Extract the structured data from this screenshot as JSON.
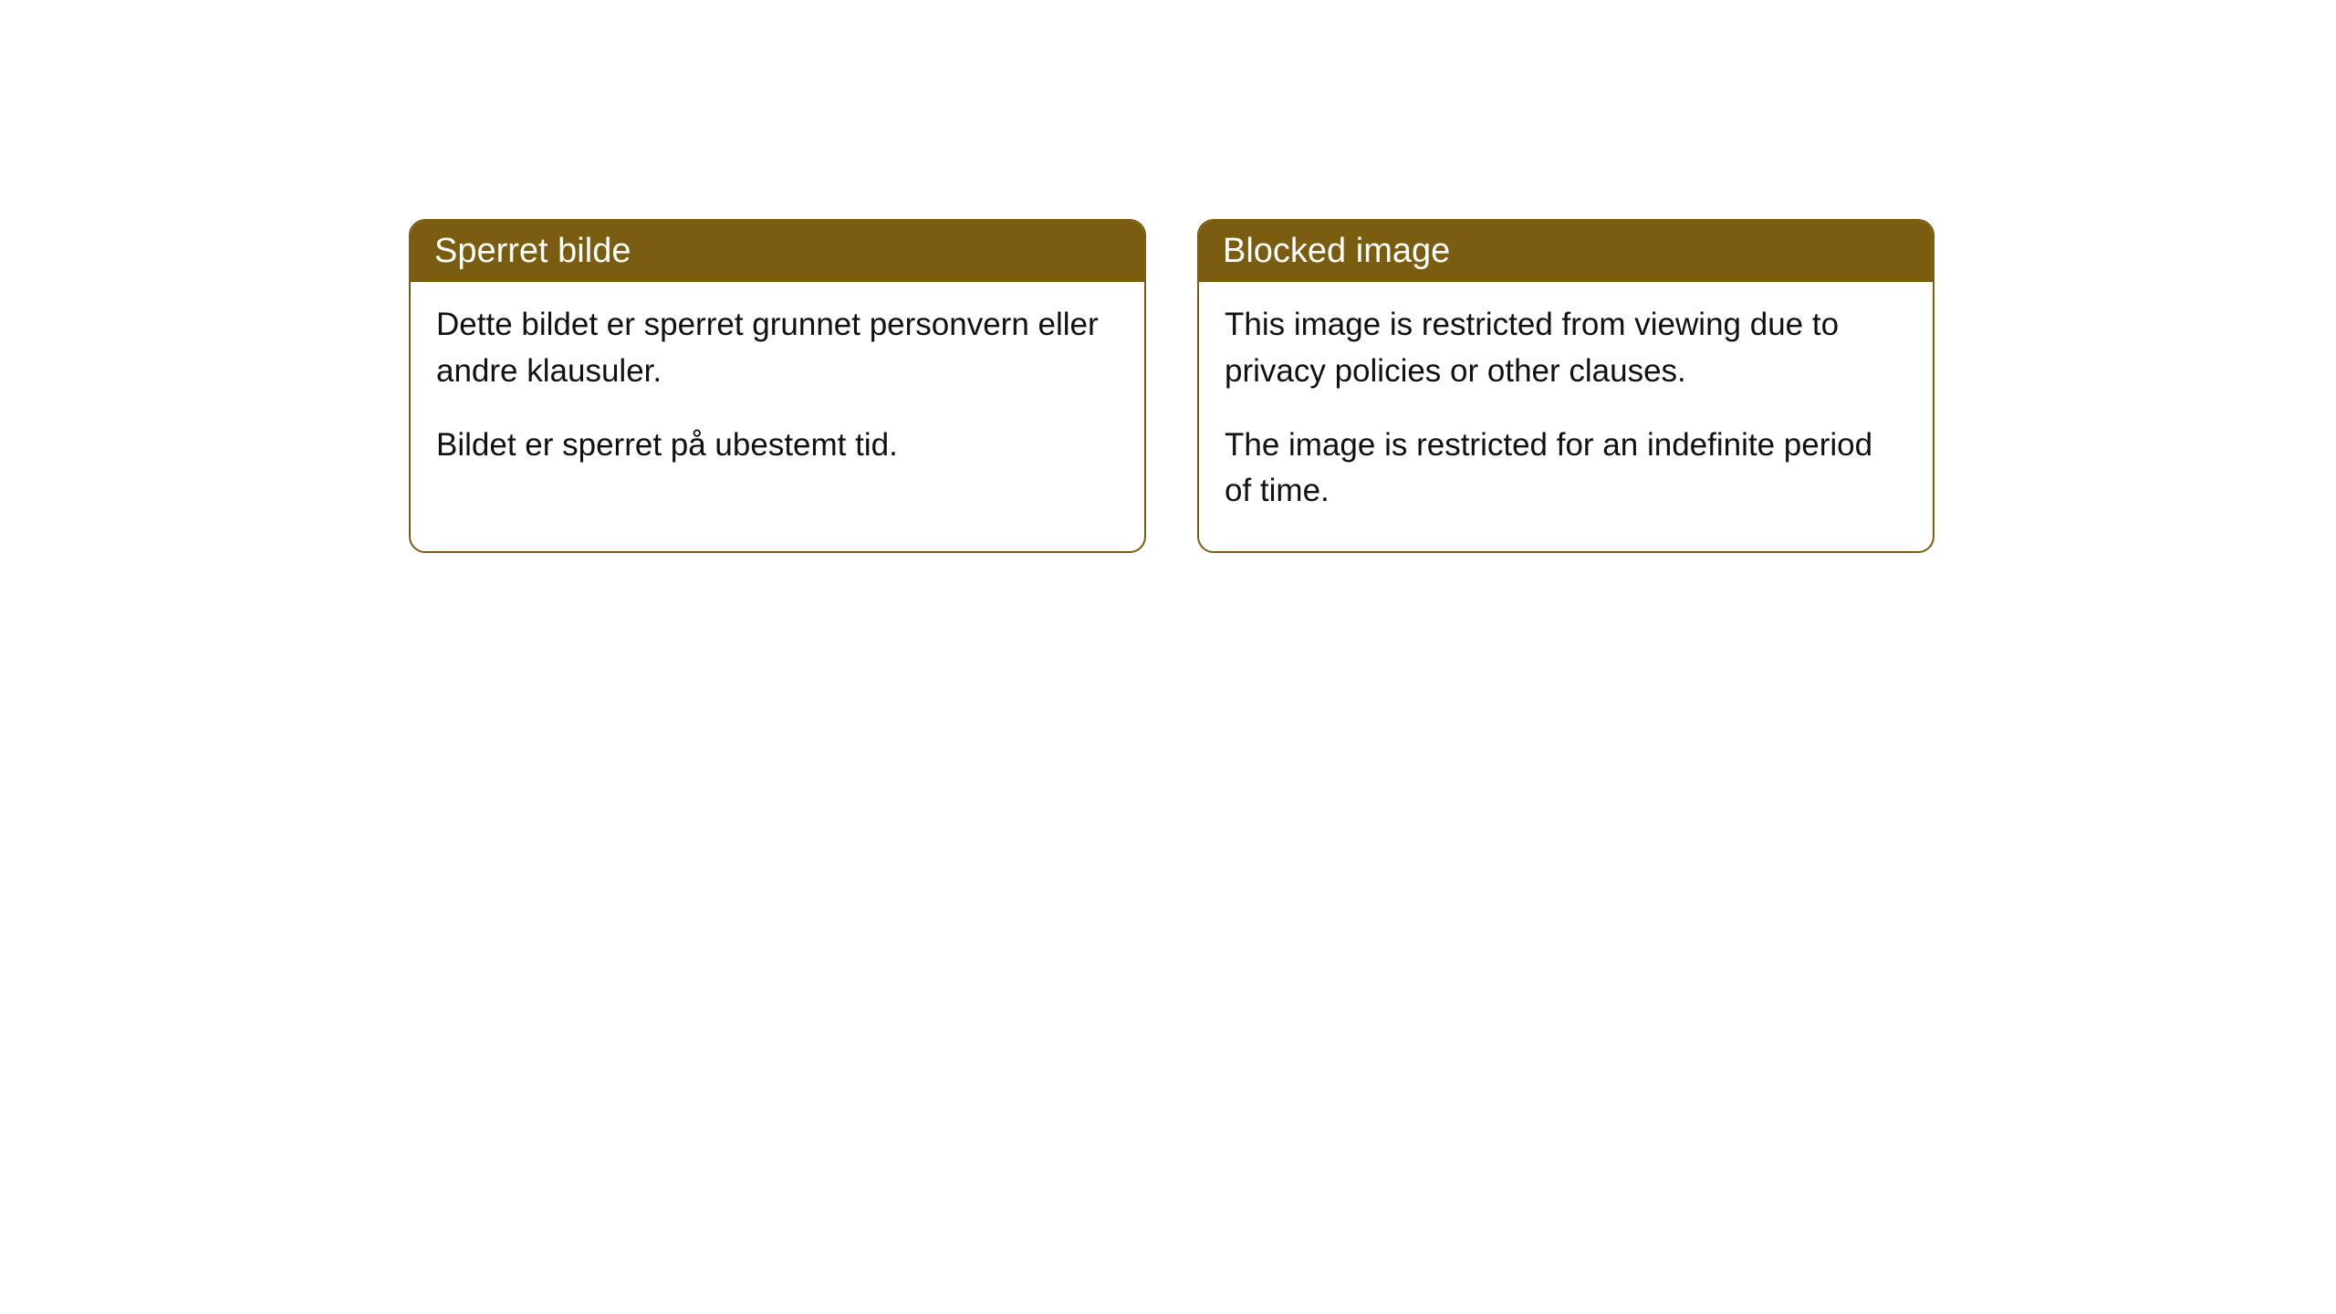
{
  "cards": [
    {
      "title": "Sperret bilde",
      "paragraph1": "Dette bildet er sperret grunnet personvern eller andre klausuler.",
      "paragraph2": "Bildet er sperret på ubestemt tid."
    },
    {
      "title": "Blocked image",
      "paragraph1": "This image is restricted from viewing due to privacy policies or other clauses.",
      "paragraph2": "The image is restricted for an indefinite period of time."
    }
  ],
  "styling": {
    "header_background": "#7a5d10",
    "header_text_color": "#ffffff",
    "border_color": "#7a5d10",
    "card_background": "#ffffff",
    "body_text_color": "#111111",
    "border_radius": 18,
    "title_fontsize": 38,
    "body_fontsize": 35
  }
}
